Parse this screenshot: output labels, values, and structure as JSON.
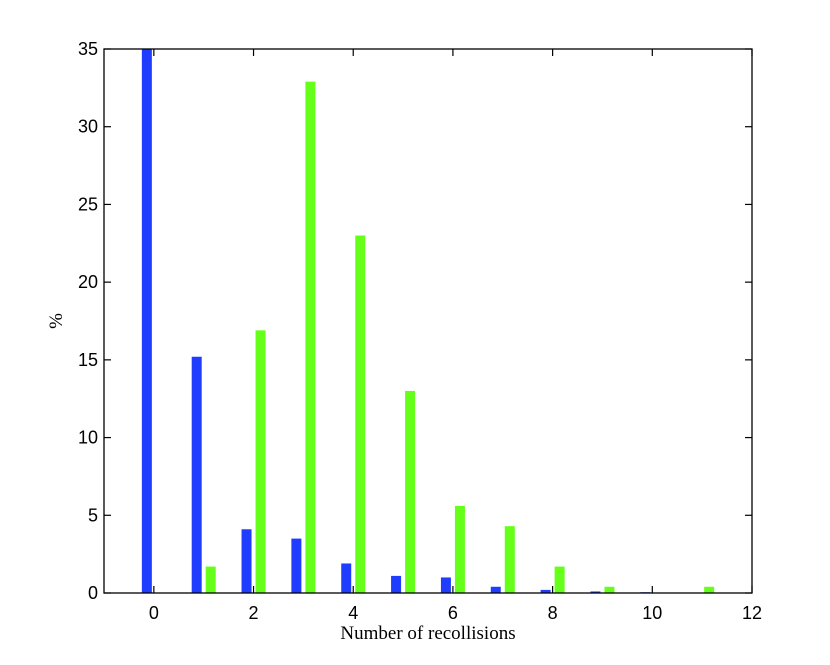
{
  "chart_data": {
    "type": "bar",
    "xlabel": "Number of recollisions",
    "ylabel": "%",
    "xlim": [
      -1,
      12
    ],
    "ylim": [
      0,
      35
    ],
    "xticks": [
      0,
      2,
      4,
      6,
      8,
      10,
      12
    ],
    "yticks": [
      0,
      5,
      10,
      15,
      20,
      25,
      30,
      35
    ],
    "grid": false,
    "colors": [
      "#1f3cff",
      "#66ff1a"
    ],
    "categories": [
      0,
      1,
      2,
      3,
      4,
      5,
      6,
      7,
      8,
      9,
      10,
      11
    ],
    "series": [
      {
        "values": [
          35.0,
          15.2,
          4.1,
          3.5,
          1.9,
          1.1,
          1.0,
          0.4,
          0.2,
          0.1,
          0.05,
          0.0
        ]
      },
      {
        "values": [
          0.0,
          1.7,
          16.9,
          32.9,
          23.0,
          13.0,
          5.6,
          4.3,
          1.7,
          0.4,
          0.0,
          0.4
        ]
      }
    ]
  }
}
